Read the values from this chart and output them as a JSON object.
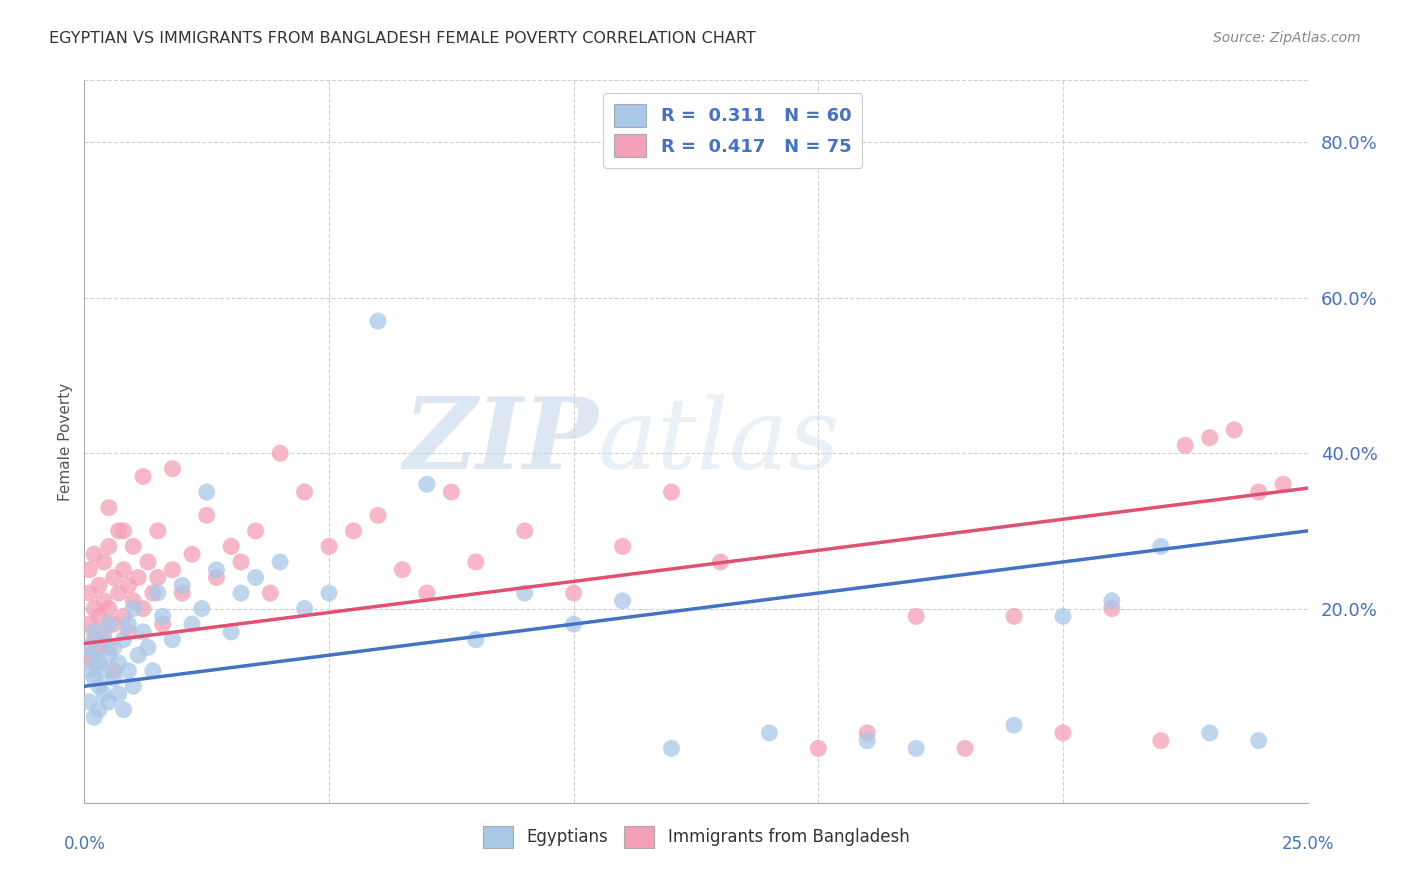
{
  "title": "EGYPTIAN VS IMMIGRANTS FROM BANGLADESH FEMALE POVERTY CORRELATION CHART",
  "source": "Source: ZipAtlas.com",
  "ylabel": "Female Poverty",
  "right_yticks": [
    "80.0%",
    "60.0%",
    "40.0%",
    "20.0%"
  ],
  "right_ytick_vals": [
    0.8,
    0.6,
    0.4,
    0.2
  ],
  "legend_text": [
    "R =  0.311   N = 60",
    "R =  0.417   N = 75"
  ],
  "watermark_zip": "ZIP",
  "watermark_atlas": "atlas",
  "blue_color": "#a8c8e8",
  "pink_color": "#f4a0b8",
  "blue_line_color": "#4472c4",
  "pink_line_color": "#e05070",
  "background_color": "#ffffff",
  "grid_color": "#d0d0d0",
  "xlim": [
    0.0,
    0.25
  ],
  "ylim": [
    -0.05,
    0.88
  ],
  "blue_line_x0": 0.0,
  "blue_line_y0": 0.1,
  "blue_line_x1": 0.25,
  "blue_line_y1": 0.3,
  "pink_line_x0": 0.0,
  "pink_line_y0": 0.155,
  "pink_line_x1": 0.25,
  "pink_line_y1": 0.355,
  "egyptians_x": [
    0.001,
    0.001,
    0.001,
    0.002,
    0.002,
    0.002,
    0.002,
    0.003,
    0.003,
    0.003,
    0.004,
    0.004,
    0.004,
    0.005,
    0.005,
    0.005,
    0.006,
    0.006,
    0.007,
    0.007,
    0.008,
    0.008,
    0.009,
    0.009,
    0.01,
    0.01,
    0.011,
    0.012,
    0.013,
    0.014,
    0.015,
    0.016,
    0.018,
    0.02,
    0.022,
    0.024,
    0.025,
    0.027,
    0.03,
    0.032,
    0.035,
    0.04,
    0.045,
    0.05,
    0.06,
    0.07,
    0.08,
    0.09,
    0.1,
    0.11,
    0.12,
    0.14,
    0.16,
    0.17,
    0.19,
    0.2,
    0.21,
    0.22,
    0.23,
    0.24
  ],
  "egyptians_y": [
    0.12,
    0.15,
    0.08,
    0.11,
    0.14,
    0.06,
    0.17,
    0.1,
    0.13,
    0.07,
    0.09,
    0.16,
    0.12,
    0.14,
    0.08,
    0.18,
    0.11,
    0.15,
    0.09,
    0.13,
    0.07,
    0.16,
    0.12,
    0.18,
    0.1,
    0.2,
    0.14,
    0.17,
    0.15,
    0.12,
    0.22,
    0.19,
    0.16,
    0.23,
    0.18,
    0.2,
    0.35,
    0.25,
    0.17,
    0.22,
    0.24,
    0.26,
    0.2,
    0.22,
    0.57,
    0.36,
    0.16,
    0.22,
    0.18,
    0.21,
    0.02,
    0.04,
    0.03,
    0.02,
    0.05,
    0.19,
    0.21,
    0.28,
    0.04,
    0.03
  ],
  "bangladesh_x": [
    0.001,
    0.001,
    0.001,
    0.001,
    0.002,
    0.002,
    0.002,
    0.002,
    0.003,
    0.003,
    0.003,
    0.004,
    0.004,
    0.004,
    0.005,
    0.005,
    0.005,
    0.006,
    0.006,
    0.006,
    0.007,
    0.007,
    0.008,
    0.008,
    0.009,
    0.009,
    0.01,
    0.01,
    0.011,
    0.012,
    0.013,
    0.014,
    0.015,
    0.016,
    0.018,
    0.02,
    0.022,
    0.025,
    0.027,
    0.03,
    0.032,
    0.035,
    0.038,
    0.04,
    0.045,
    0.05,
    0.055,
    0.06,
    0.065,
    0.07,
    0.075,
    0.08,
    0.09,
    0.1,
    0.11,
    0.12,
    0.13,
    0.15,
    0.16,
    0.17,
    0.18,
    0.19,
    0.2,
    0.21,
    0.22,
    0.225,
    0.23,
    0.235,
    0.24,
    0.245,
    0.005,
    0.008,
    0.012,
    0.015,
    0.018
  ],
  "bangladesh_y": [
    0.18,
    0.22,
    0.14,
    0.25,
    0.16,
    0.2,
    0.13,
    0.27,
    0.19,
    0.23,
    0.15,
    0.21,
    0.17,
    0.26,
    0.2,
    0.15,
    0.28,
    0.18,
    0.24,
    0.12,
    0.22,
    0.3,
    0.19,
    0.25,
    0.17,
    0.23,
    0.21,
    0.28,
    0.24,
    0.2,
    0.26,
    0.22,
    0.3,
    0.18,
    0.25,
    0.22,
    0.27,
    0.32,
    0.24,
    0.28,
    0.26,
    0.3,
    0.22,
    0.4,
    0.35,
    0.28,
    0.3,
    0.32,
    0.25,
    0.22,
    0.35,
    0.26,
    0.3,
    0.22,
    0.28,
    0.35,
    0.26,
    0.02,
    0.04,
    0.19,
    0.02,
    0.19,
    0.04,
    0.2,
    0.03,
    0.41,
    0.42,
    0.43,
    0.35,
    0.36,
    0.33,
    0.3,
    0.37,
    0.24,
    0.38
  ]
}
